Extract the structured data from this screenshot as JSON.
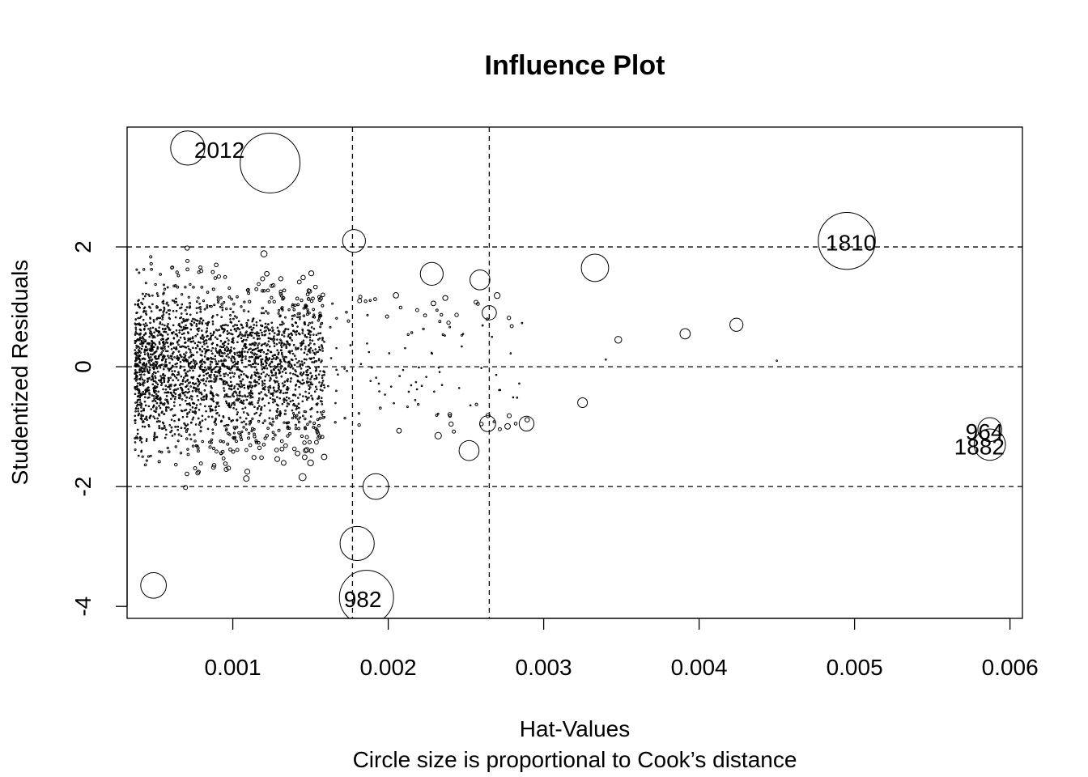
{
  "chart_data": {
    "type": "scatter",
    "title": "Influence Plot",
    "xlabel": "Hat-Values",
    "ylabel": "Studentized Residuals",
    "subtitle": "Circle size is proportional to Cook’s distance",
    "xlim": [
      0.00032,
      0.00608
    ],
    "ylim": [
      -4.2,
      4.0
    ],
    "xticks": [
      0.001,
      0.002,
      0.003,
      0.004,
      0.005,
      0.006
    ],
    "xtick_labels": [
      "0.001",
      "0.002",
      "0.003",
      "0.004",
      "0.005",
      "0.006"
    ],
    "yticks": [
      -4,
      -2,
      0,
      2
    ],
    "ytick_labels": [
      "-4",
      "-2",
      "0",
      "2"
    ],
    "reference_lines": {
      "vertical": [
        0.00177,
        0.00265
      ],
      "horizontal": [
        -2,
        0,
        2
      ]
    },
    "labeled_points": [
      {
        "label": "2012",
        "hat": 0.00071,
        "rstudent": 3.65
      },
      {
        "label": "1810",
        "hat": 0.00495,
        "rstudent": 2.1
      },
      {
        "label": "964",
        "hat": 0.00587,
        "rstudent": -1.05
      },
      {
        "label": "1882",
        "hat": 0.00587,
        "rstudent": -1.3
      },
      {
        "label": "982",
        "hat": 0.00186,
        "rstudent": -3.85
      }
    ],
    "points": [
      {
        "hat": 0.00495,
        "rstudent": 2.1,
        "cookd": 1.0
      },
      {
        "hat": 0.00587,
        "rstudent": -1.05,
        "cookd": 0.42
      },
      {
        "hat": 0.00587,
        "rstudent": -1.3,
        "cookd": 0.55
      },
      {
        "hat": 0.00333,
        "rstudent": 1.65,
        "cookd": 0.48
      },
      {
        "hat": 0.00424,
        "rstudent": 0.7,
        "cookd": 0.23
      },
      {
        "hat": 0.00391,
        "rstudent": 0.55,
        "cookd": 0.18
      },
      {
        "hat": 0.00348,
        "rstudent": 0.45,
        "cookd": 0.12
      },
      {
        "hat": 0.00325,
        "rstudent": -0.6,
        "cookd": 0.17
      },
      {
        "hat": 0.0034,
        "rstudent": 0.12,
        "cookd": 0.02
      },
      {
        "hat": 0.0045,
        "rstudent": 0.1,
        "cookd": 0.02
      },
      {
        "hat": 0.00071,
        "rstudent": 3.65,
        "cookd": 0.6
      },
      {
        "hat": 0.00124,
        "rstudent": 3.4,
        "cookd": 1.05
      },
      {
        "hat": 0.00186,
        "rstudent": -3.85,
        "cookd": 0.95
      },
      {
        "hat": 0.00049,
        "rstudent": -3.65,
        "cookd": 0.45
      },
      {
        "hat": 0.00228,
        "rstudent": 1.55,
        "cookd": 0.4
      },
      {
        "hat": 0.00259,
        "rstudent": 1.45,
        "cookd": 0.35
      },
      {
        "hat": 0.00252,
        "rstudent": -1.4,
        "cookd": 0.35
      },
      {
        "hat": 0.00264,
        "rstudent": -0.95,
        "cookd": 0.28
      },
      {
        "hat": 0.00289,
        "rstudent": -0.95,
        "cookd": 0.26
      },
      {
        "hat": 0.00265,
        "rstudent": 0.9,
        "cookd": 0.25
      },
      {
        "hat": 0.00178,
        "rstudent": 2.1,
        "cookd": 0.4
      },
      {
        "hat": 0.00192,
        "rstudent": -2.0,
        "cookd": 0.45
      },
      {
        "hat": 0.0018,
        "rstudent": -2.95,
        "cookd": 0.6
      }
    ]
  }
}
